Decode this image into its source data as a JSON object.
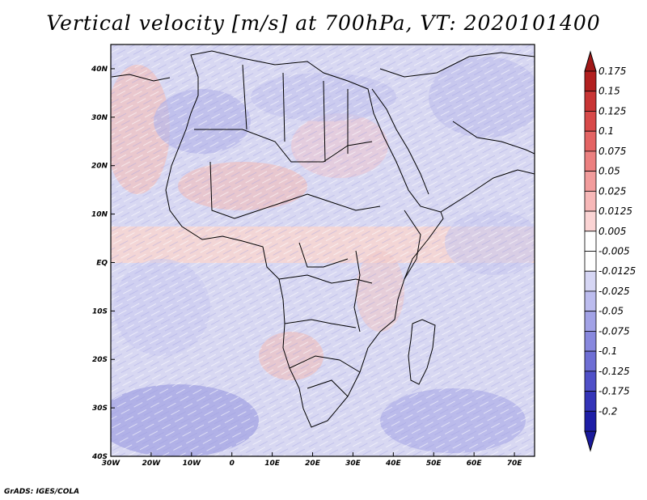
{
  "title": "Vertical velocity [m/s] at 700hPa, VT: 2020101400",
  "credit": "GrADS: IGES/COLA",
  "map": {
    "lon_range": [
      -30,
      75
    ],
    "lat_range": [
      -40,
      45
    ],
    "lon_ticks": [
      {
        "value": -30,
        "label": "30W"
      },
      {
        "value": -20,
        "label": "20W"
      },
      {
        "value": -10,
        "label": "10W"
      },
      {
        "value": 0,
        "label": "0"
      },
      {
        "value": 10,
        "label": "10E"
      },
      {
        "value": 20,
        "label": "20E"
      },
      {
        "value": 30,
        "label": "30E"
      },
      {
        "value": 40,
        "label": "40E"
      },
      {
        "value": 50,
        "label": "50E"
      },
      {
        "value": 60,
        "label": "60E"
      },
      {
        "value": 70,
        "label": "70E"
      }
    ],
    "lat_ticks": [
      {
        "value": 40,
        "label": "40N"
      },
      {
        "value": 30,
        "label": "30N"
      },
      {
        "value": 20,
        "label": "20N"
      },
      {
        "value": 10,
        "label": "10N"
      },
      {
        "value": 0,
        "label": "EQ"
      },
      {
        "value": -10,
        "label": "10S"
      },
      {
        "value": -20,
        "label": "20S"
      },
      {
        "value": -30,
        "label": "30S"
      },
      {
        "value": -40,
        "label": "40S"
      }
    ]
  },
  "colorbar": {
    "levels": [
      {
        "label": "0.175",
        "color": "#b22020"
      },
      {
        "label": "0.15",
        "color": "#c83535"
      },
      {
        "label": "0.125",
        "color": "#d84a4a"
      },
      {
        "label": "0.1",
        "color": "#e46464"
      },
      {
        "label": "0.075",
        "color": "#ec8080"
      },
      {
        "label": "0.05",
        "color": "#f29c9c"
      },
      {
        "label": "0.025",
        "color": "#f7b8b8"
      },
      {
        "label": "0.0125",
        "color": "#fbd4d4"
      },
      {
        "label": "0.005",
        "color": "#ffffff"
      },
      {
        "label": "-0.005",
        "color": "#ffffff"
      },
      {
        "label": "-0.0125",
        "color": "#d6d6f4"
      },
      {
        "label": "-0.025",
        "color": "#bcbcee"
      },
      {
        "label": "-0.05",
        "color": "#a2a2e6"
      },
      {
        "label": "-0.075",
        "color": "#8888de"
      },
      {
        "label": "-0.1",
        "color": "#6e6ed4"
      },
      {
        "label": "-0.125",
        "color": "#5050c8"
      },
      {
        "label": "-0.175",
        "color": "#3434b8"
      },
      {
        "label": "-0.2",
        "color": "#1e1ea6"
      }
    ],
    "top_color": "#a01818",
    "bottom_color": "#1a1a9c"
  }
}
